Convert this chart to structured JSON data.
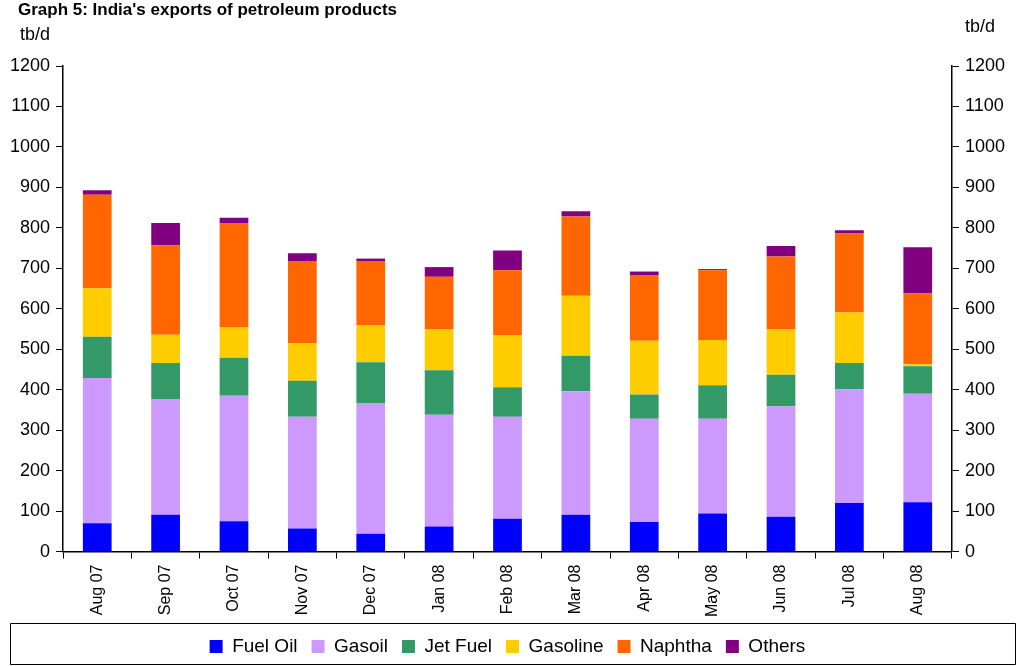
{
  "chart_data": {
    "type": "bar",
    "stacked": true,
    "title": "Graph 5: India's exports of petroleum products",
    "ylabel": "tb/d",
    "y2label": "tb/d",
    "categories": [
      "Aug 07",
      "Sep 07",
      "Oct 07",
      "Nov 07",
      "Dec 07",
      "Jan 08",
      "Feb 08",
      "Mar 08",
      "Apr 08",
      "May 08",
      "Jun 08",
      "Jul 08",
      "Aug 08"
    ],
    "series": [
      {
        "name": "Fuel Oil",
        "color": "#0000ff",
        "values": [
          70,
          91,
          75,
          57,
          44,
          62,
          81,
          91,
          73,
          94,
          86,
          120,
          122
        ]
      },
      {
        "name": "Gasoil",
        "color": "#cc99ff",
        "values": [
          359,
          286,
          310,
          276,
          323,
          276,
          252,
          305,
          255,
          234,
          273,
          281,
          268
        ]
      },
      {
        "name": "Jet Fuel",
        "color": "#339966",
        "values": [
          102,
          89,
          94,
          89,
          101,
          110,
          73,
          88,
          60,
          83,
          78,
          65,
          68
        ]
      },
      {
        "name": "Gasoline",
        "color": "#ffcc00",
        "values": [
          120,
          70,
          75,
          93,
          92,
          101,
          128,
          148,
          133,
          112,
          112,
          125,
          5
        ]
      },
      {
        "name": "Naphtha",
        "color": "#ff6600",
        "values": [
          231,
          221,
          258,
          203,
          158,
          130,
          161,
          196,
          161,
          172,
          180,
          195,
          175
        ]
      },
      {
        "name": "Others",
        "color": "#800080",
        "values": [
          11,
          55,
          13,
          19,
          6,
          24,
          49,
          13,
          10,
          3,
          26,
          8,
          114
        ]
      }
    ],
    "ylim": [
      0,
      1200
    ],
    "yticks": [
      0,
      100,
      200,
      300,
      400,
      500,
      600,
      700,
      800,
      900,
      1000,
      1100,
      1200
    ],
    "y2lim": [
      0,
      1200
    ],
    "y2ticks": [
      0,
      100,
      200,
      300,
      400,
      500,
      600,
      700,
      800,
      900,
      1000,
      1100,
      1200
    ],
    "grid": false,
    "legend": "bottom"
  }
}
